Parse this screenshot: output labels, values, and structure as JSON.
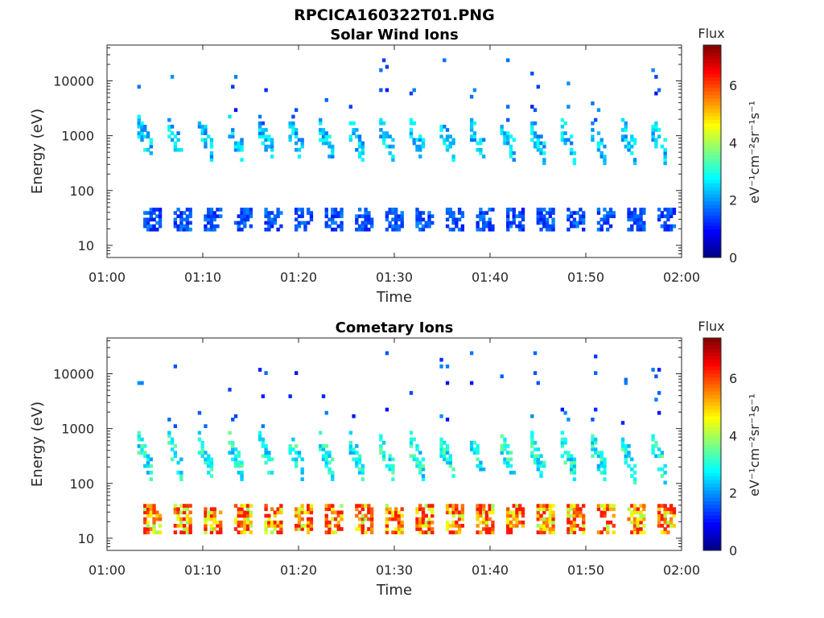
{
  "figure": {
    "title": "RPCICA160322T01.PNG"
  },
  "chart_data": [
    {
      "type": "heatmap",
      "title": "Solar Wind Ions",
      "xlabel": "Time",
      "ylabel": "Energy (eV)",
      "xlim": [
        "01:00",
        "02:00"
      ],
      "ylim": [
        6,
        45000
      ],
      "yscale": "log",
      "xticks": [
        "01:00",
        "01:10",
        "01:20",
        "01:30",
        "01:40",
        "01:50",
        "02:00"
      ],
      "yticks": [
        10,
        100,
        1000,
        10000
      ],
      "grid": false,
      "colorbar": {
        "title": "Flux",
        "label": "eV⁻¹cm⁻²sr⁻¹s⁻¹",
        "range": [
          0,
          7.4
        ],
        "ticks": [
          0,
          2,
          4,
          6
        ],
        "colormap": "jet"
      },
      "pattern": {
        "data_start_min": 3,
        "data_end_min": 59.5,
        "burst_period_min": 3.15,
        "main_band_eV": [
          150,
          1500
        ],
        "main_band_flux": 2.5,
        "low_band_eV": [
          18,
          45
        ],
        "low_band_flux": 1.5,
        "peak_flux": 3.6
      }
    },
    {
      "type": "heatmap",
      "title": "Cometary Ions",
      "xlabel": "Time",
      "ylabel": "Energy (eV)",
      "xlim": [
        "01:00",
        "02:00"
      ],
      "ylim": [
        6,
        45000
      ],
      "yscale": "log",
      "xticks": [
        "01:00",
        "01:10",
        "01:20",
        "01:30",
        "01:40",
        "01:50",
        "02:00"
      ],
      "yticks": [
        10,
        100,
        1000,
        10000
      ],
      "grid": false,
      "colorbar": {
        "title": "Flux",
        "label": "eV⁻¹cm⁻²sr⁻¹s⁻¹",
        "range": [
          0,
          7.4
        ],
        "ticks": [
          0,
          2,
          4,
          6
        ],
        "colormap": "jet"
      },
      "pattern": {
        "data_start_min": 3,
        "data_end_min": 59.5,
        "burst_period_min": 3.15,
        "main_band_eV": [
          40,
          600
        ],
        "main_band_flux": 3.0,
        "low_band_eV": [
          12,
          40
        ],
        "low_band_flux": 5.5,
        "peak_flux": 6.3
      }
    }
  ]
}
